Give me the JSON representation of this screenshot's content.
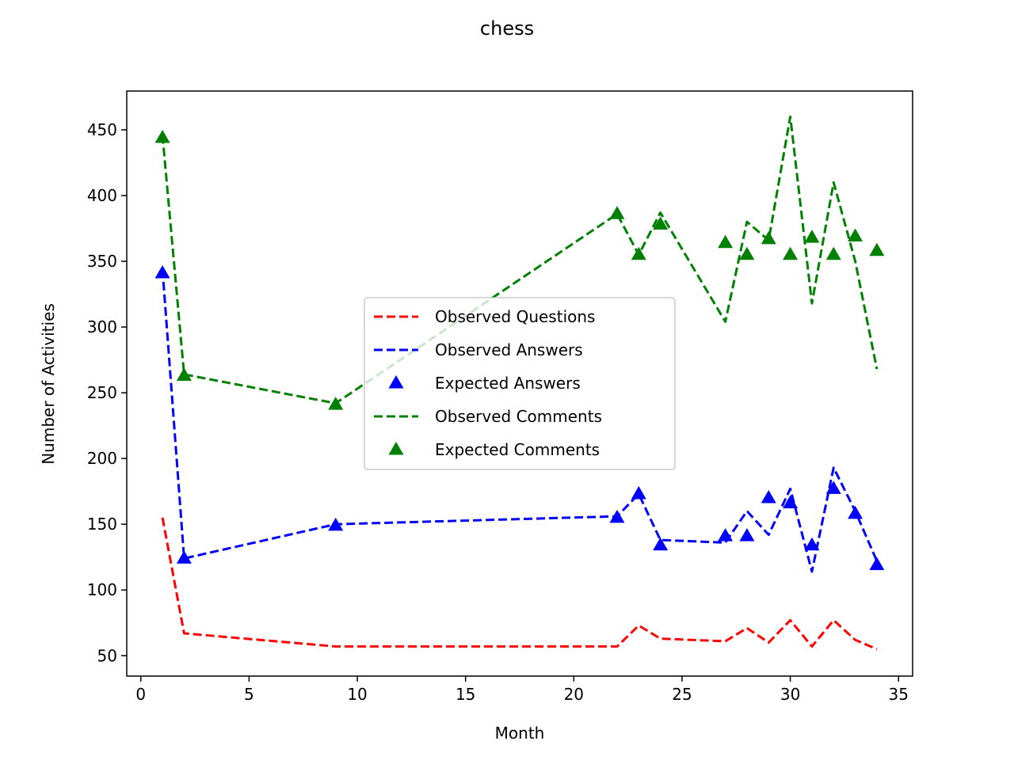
{
  "chart_data": {
    "type": "line",
    "title": "chess",
    "xlabel": "Month",
    "ylabel": "Number of Activities",
    "xlim": [
      -0.65,
      35.65
    ],
    "ylim": [
      34.5,
      479.5
    ],
    "xticks": [
      0,
      5,
      10,
      15,
      20,
      25,
      30,
      35
    ],
    "yticks": [
      50,
      100,
      150,
      200,
      250,
      300,
      350,
      400,
      450
    ],
    "grid": false,
    "legend_placement": "center",
    "x": [
      1,
      2,
      9,
      22,
      23,
      24,
      27,
      28,
      29,
      30,
      31,
      32,
      33,
      34
    ],
    "series": [
      {
        "name": "Observed Questions",
        "style": "dashed-line",
        "color": "#ff0000",
        "values": [
          155,
          67,
          57,
          57,
          73,
          63,
          61,
          71,
          60,
          77,
          57,
          77,
          62,
          55
        ]
      },
      {
        "name": "Observed Answers",
        "style": "dashed-line",
        "color": "#0000ff",
        "values": [
          344,
          124,
          150,
          156,
          173,
          138,
          136,
          160,
          142,
          177,
          114,
          193,
          160,
          122
        ]
      },
      {
        "name": "Expected Answers",
        "style": "triangle-marker",
        "color": "#0000ff",
        "values": [
          341,
          124,
          149,
          155,
          173,
          134,
          141,
          141,
          170,
          166,
          134,
          177,
          158,
          119
        ]
      },
      {
        "name": "Observed Comments",
        "style": "dashed-line",
        "color": "#008000",
        "values": [
          446,
          264,
          242,
          386,
          355,
          387,
          304,
          380,
          366,
          460,
          318,
          410,
          350,
          268
        ]
      },
      {
        "name": "Expected Comments",
        "style": "triangle-marker",
        "color": "#008000",
        "values": [
          444,
          263,
          241,
          386,
          355,
          378,
          364,
          355,
          367,
          355,
          368,
          355,
          369,
          358
        ]
      }
    ]
  }
}
